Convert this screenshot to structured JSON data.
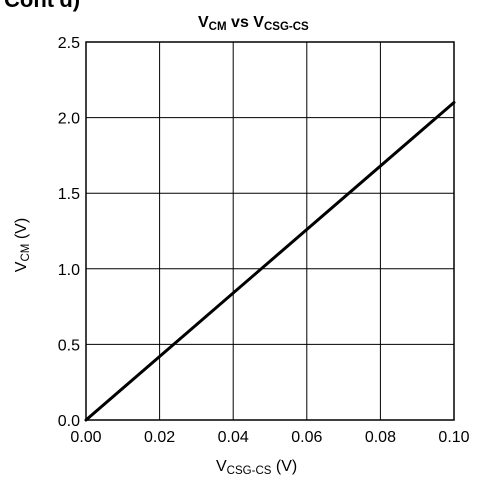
{
  "header": {
    "cut_title": "Cont'd)"
  },
  "chart_data": {
    "type": "line",
    "title": {
      "main": "V",
      "sub1": "CM",
      "mid": " vs V",
      "sub2": "CSG-CS"
    },
    "xlabel": {
      "main": "V",
      "sub": "CSG-CS",
      "unit": " (V)"
    },
    "ylabel": {
      "main": "V",
      "sub": "CM",
      "unit": " (V)"
    },
    "xlim": [
      0,
      0.1
    ],
    "ylim": [
      0,
      2.5
    ],
    "x_ticks": [
      "0.00",
      "0.02",
      "0.04",
      "0.06",
      "0.08",
      "0.10"
    ],
    "y_ticks": [
      "0.0",
      "0.5",
      "1.0",
      "1.5",
      "2.0",
      "2.5"
    ],
    "grid": true,
    "series": [
      {
        "x": [
          0.0,
          0.1
        ],
        "y": [
          0.0,
          2.1
        ],
        "color": "#000000"
      }
    ]
  }
}
